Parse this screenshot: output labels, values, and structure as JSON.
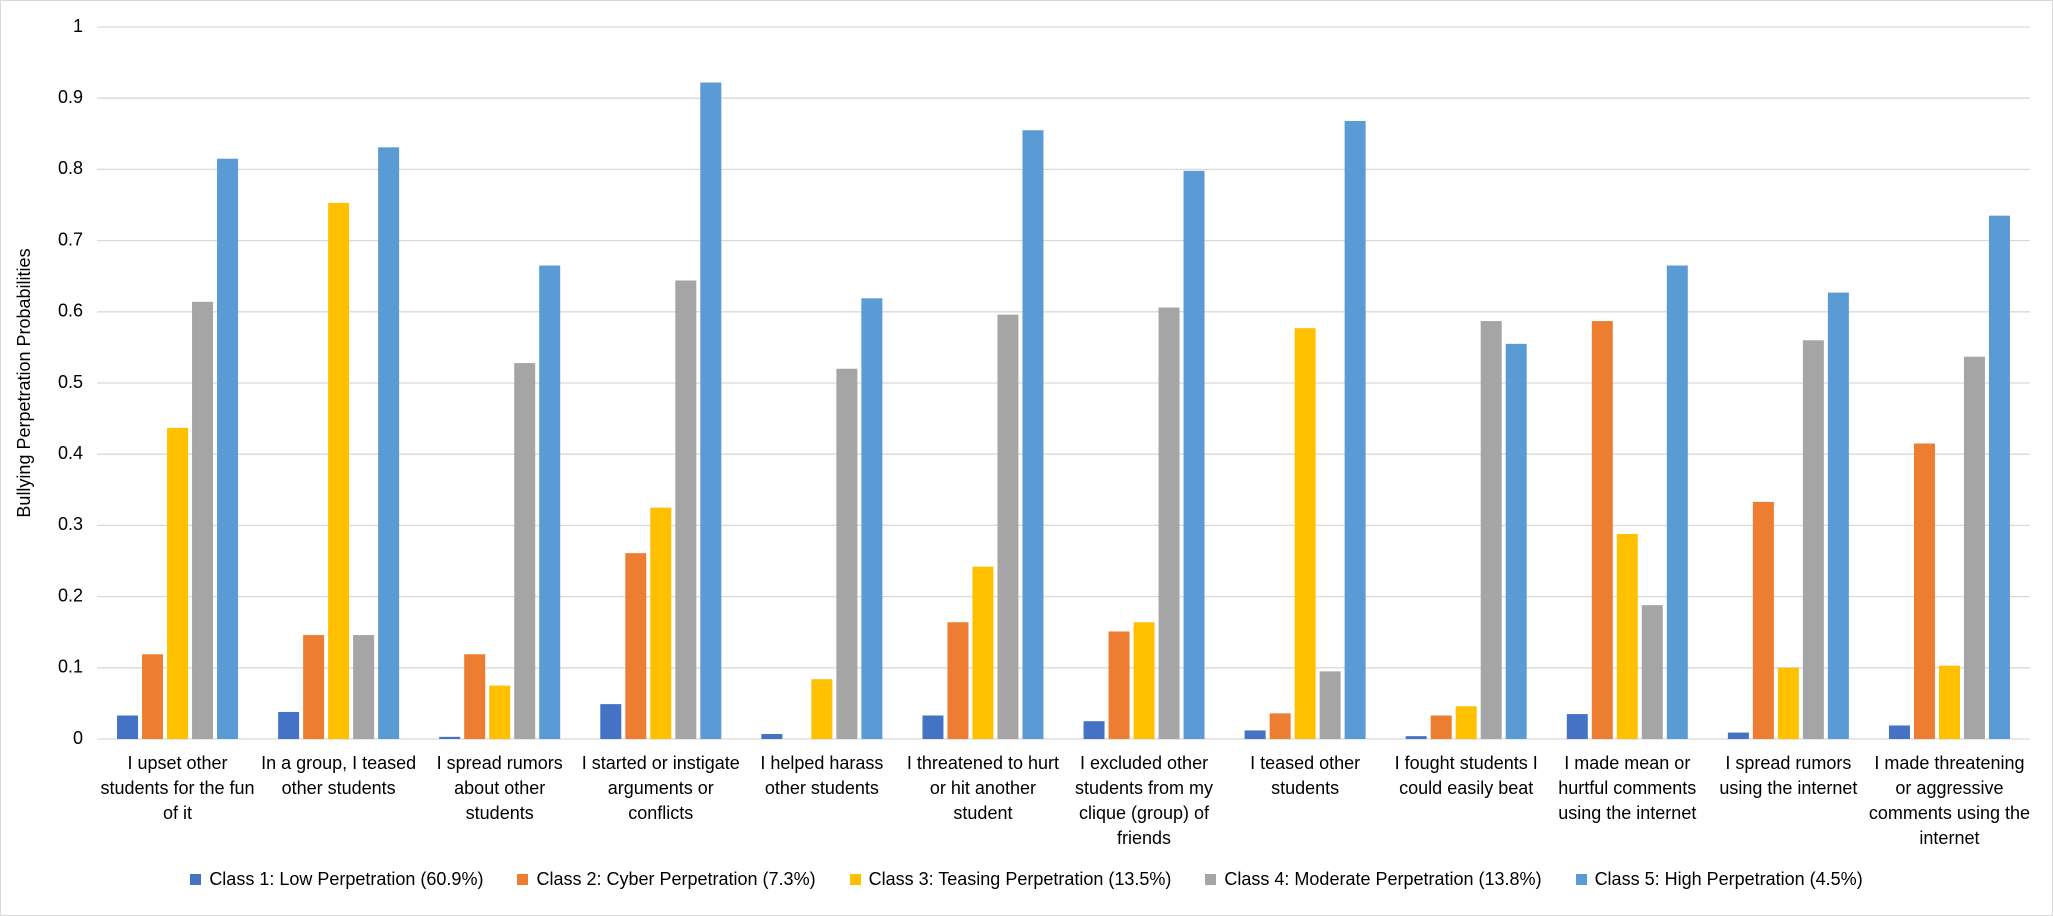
{
  "chart_data": {
    "type": "bar",
    "y_label": "Bullying Perpetration Probabilities",
    "categories": [
      "I upset other students for the fun of it",
      "In a group, I teased other students",
      "I spread rumors about other students",
      "I started or instigate arguments or conflicts",
      "I helped harass other students",
      "I threatened to hurt or hit another student",
      "I excluded other students from my clique (group) of friends",
      "I teased other students",
      "I fought students I could easily beat",
      "I made mean or hurtful comments using the internet",
      "I spread rumors using the internet",
      "I made threatening or aggressive comments using the internet"
    ],
    "series": [
      {
        "name": "Class 1: Low Perpetration (60.9%)",
        "color": "#4472c4",
        "values": [
          0.033,
          0.038,
          0.003,
          0.049,
          0.007,
          0.033,
          0.025,
          0.012,
          0.004,
          0.035,
          0.009,
          0.019
        ]
      },
      {
        "name": "Class 2: Cyber Perpetration (7.3%)",
        "color": "#ed7d31",
        "values": [
          0.119,
          0.146,
          0.119,
          0.261,
          0,
          0.164,
          0.151,
          0.036,
          0.033,
          0.587,
          0.333,
          0.415
        ]
      },
      {
        "name": "Class 3: Teasing Perpetration (13.5%)",
        "color": "#ffc000",
        "values": [
          0.437,
          0.753,
          0.075,
          0.325,
          0.084,
          0.242,
          0.164,
          0.577,
          0.046,
          0.288,
          0.1,
          0.103
        ]
      },
      {
        "name": "Class 4: Moderate Perpetration (13.8%)",
        "color": "#a5a5a5",
        "values": [
          0.614,
          0.146,
          0.528,
          0.644,
          0.52,
          0.596,
          0.606,
          0.095,
          0.587,
          0.188,
          0.56,
          0.537
        ]
      },
      {
        "name": "Class 5: High Perpetration (4.5%)",
        "color": "#5b9bd5",
        "values": [
          0.815,
          0.831,
          0.665,
          0.922,
          0.619,
          0.855,
          0.798,
          0.868,
          0.555,
          0.665,
          0.627,
          0.735
        ]
      }
    ],
    "ylim": [
      0,
      1
    ],
    "yticks": [
      0,
      0.1,
      0.2,
      0.3,
      0.4,
      0.5,
      0.6,
      0.7,
      0.8,
      0.9,
      1
    ],
    "grid": true,
    "legend": "bottom"
  }
}
